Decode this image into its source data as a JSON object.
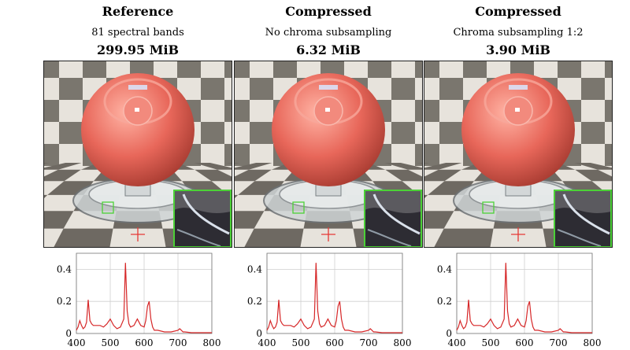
{
  "panels": [
    {
      "title": "Reference",
      "subtitle": "81 spectral bands",
      "size": "299.95 MiB"
    },
    {
      "title": "Compressed",
      "subtitle": "No chroma subsampling",
      "size": "6.32 MiB"
    },
    {
      "title": "Compressed",
      "subtitle": "Chroma subsampling 1:2",
      "size": "3.90 MiB"
    }
  ],
  "colors": {
    "curve": "#d62728",
    "inset_frame": "#4cd137",
    "crosshair": "#e53935",
    "sphere": "#e8675a",
    "checker_dark": "#6e6962",
    "checker_light": "#e7e3dc"
  },
  "chart_data": {
    "type": "line",
    "xlabel": "",
    "ylabel": "",
    "xlim": [
      400,
      800
    ],
    "ylim": [
      0,
      0.5
    ],
    "xticks": [
      "400",
      "500",
      "600",
      "700",
      "800"
    ],
    "yticks": [
      "0",
      "0.2",
      "0.4"
    ],
    "series": [
      {
        "x": [
          400,
          405,
          410,
          415,
          420,
          425,
          430,
          435,
          440,
          445,
          450,
          460,
          470,
          480,
          490,
          500,
          510,
          520,
          530,
          540,
          545,
          550,
          555,
          560,
          570,
          580,
          590,
          600,
          605,
          610,
          615,
          620,
          625,
          630,
          640,
          660,
          680,
          700,
          705,
          710,
          715,
          720,
          740,
          760,
          780,
          800
        ],
        "y": [
          0.02,
          0.04,
          0.08,
          0.05,
          0.03,
          0.04,
          0.07,
          0.21,
          0.08,
          0.06,
          0.05,
          0.05,
          0.05,
          0.04,
          0.06,
          0.09,
          0.05,
          0.03,
          0.04,
          0.09,
          0.44,
          0.14,
          0.06,
          0.04,
          0.05,
          0.09,
          0.05,
          0.04,
          0.08,
          0.17,
          0.2,
          0.09,
          0.04,
          0.02,
          0.02,
          0.01,
          0.01,
          0.02,
          0.03,
          0.02,
          0.01,
          0.01,
          0.005,
          0.005,
          0.005,
          0.005
        ]
      }
    ]
  }
}
